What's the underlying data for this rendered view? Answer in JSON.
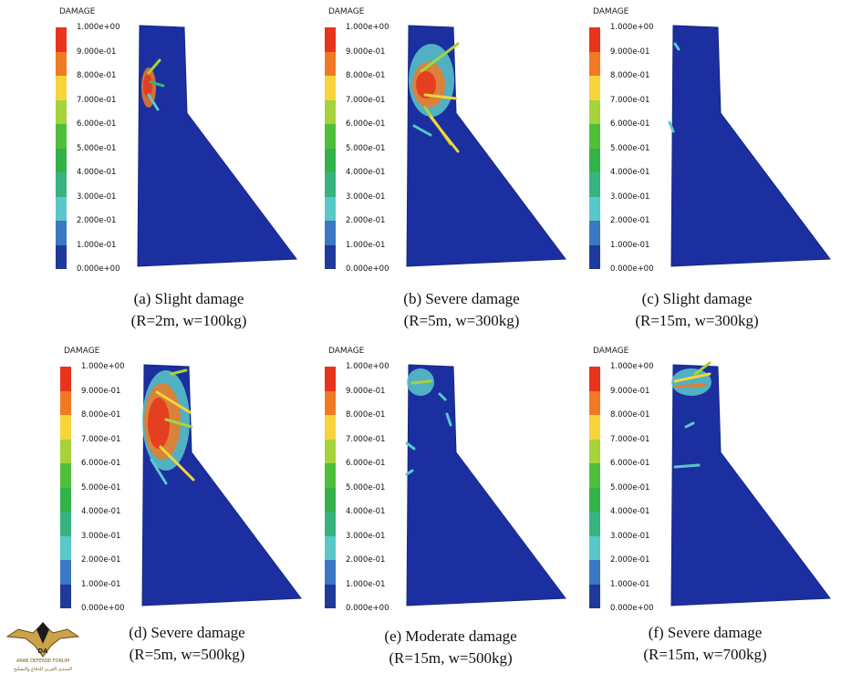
{
  "legend": {
    "title": "DAMAGE",
    "ticks": [
      "1.000e+00",
      "9.000e-01",
      "8.000e-01",
      "7.000e-01",
      "6.000e-01",
      "5.000e-01",
      "4.000e-01",
      "3.000e-01",
      "2.000e-01",
      "1.000e-01",
      "0.000e+00"
    ],
    "colors": [
      "#e8341c",
      "#f07a23",
      "#f7d43a",
      "#a6d33b",
      "#4fbf3a",
      "#33b24a",
      "#36b37e",
      "#5ac8c8",
      "#3a78c3",
      "#1f3a9a"
    ],
    "dam_color": "#1c2fa0"
  },
  "panels": [
    {
      "caption_line1": "(a) Slight damage",
      "caption_line2": "(R=2m, w=100kg)"
    },
    {
      "caption_line1": "(b) Severe damage",
      "caption_line2": "(R=5m, w=300kg)"
    },
    {
      "caption_line1": "(c) Slight damage",
      "caption_line2": "(R=15m, w=300kg)"
    },
    {
      "caption_line1": "(d) Severe damage",
      "caption_line2": "(R=5m, w=500kg)"
    },
    {
      "caption_line1": "(e) Moderate damage",
      "caption_line2": "(R=15m, w=500kg)"
    },
    {
      "caption_line1": "(f) Severe damage",
      "caption_line2": "(R=15m, w=700kg)"
    }
  ],
  "watermark": {
    "line1": "ARAB DEFENSE FORUM",
    "line2": "المنتدى العربي للدفاع والتسليح",
    "mark": "DA"
  }
}
